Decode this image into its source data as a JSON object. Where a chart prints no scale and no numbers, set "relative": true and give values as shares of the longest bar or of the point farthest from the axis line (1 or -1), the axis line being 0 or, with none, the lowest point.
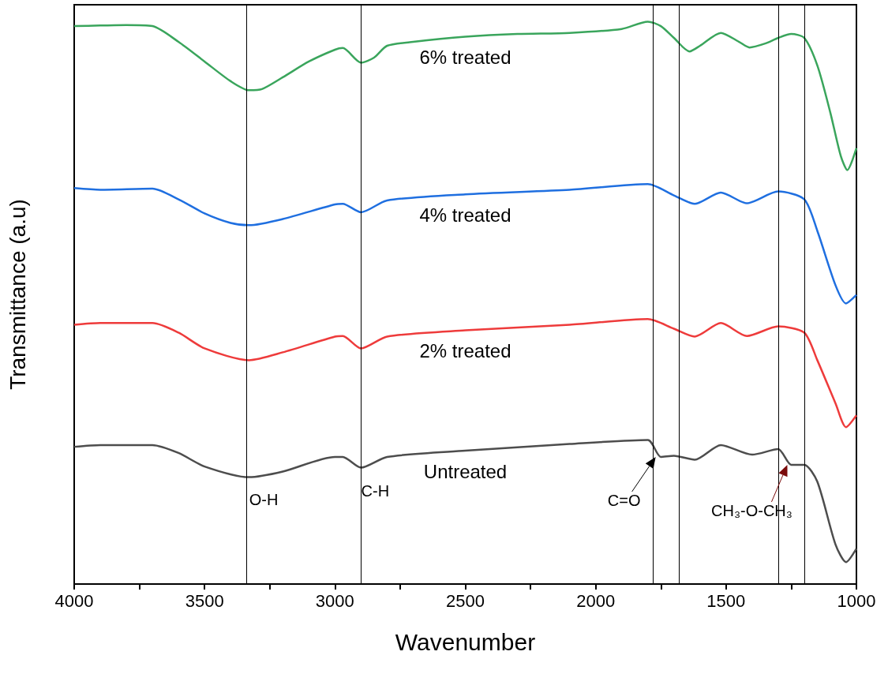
{
  "chart_data": {
    "type": "line",
    "relative": true,
    "xlabel": "Wavenumber",
    "ylabel": "Transmittance (a.u)",
    "xlim": [
      4000,
      1000
    ],
    "xticks": [
      4000,
      {
        "value": 3750,
        "label": null
      },
      3500,
      {
        "value": 3250,
        "label": null
      },
      3000,
      {
        "value": 2750,
        "label": null
      },
      2500,
      {
        "value": 2250,
        "label": null
      },
      2000,
      {
        "value": 1750,
        "label": null
      },
      1500,
      {
        "value": 1250,
        "label": null
      },
      1000
    ],
    "grid": false,
    "legend": false,
    "marker": "none",
    "line_style": "solid",
    "series": [
      {
        "name": "6% treated",
        "color": "#3aa55c",
        "x": [
          4000,
          3900,
          3800,
          3700,
          3600,
          3500,
          3400,
          3330,
          3280,
          3200,
          3100,
          3000,
          2970,
          2900,
          2850,
          2800,
          2700,
          2500,
          2300,
          2100,
          1900,
          1800,
          1750,
          1700,
          1640,
          1600,
          1520,
          1450,
          1410,
          1350,
          1300,
          1250,
          1200,
          1150,
          1100,
          1060,
          1035,
          1000
        ],
        "values": [
          0.992,
          0.993,
          0.994,
          0.992,
          0.964,
          0.929,
          0.894,
          0.878,
          0.88,
          0.901,
          0.929,
          0.95,
          0.953,
          0.927,
          0.936,
          0.957,
          0.964,
          0.973,
          0.978,
          0.98,
          0.987,
          1,
          0.992,
          0.971,
          0.947,
          0.957,
          0.98,
          0.964,
          0.954,
          0.961,
          0.971,
          0.978,
          0.971,
          0.922,
          0.838,
          0.761,
          0.736,
          0.775
        ]
      },
      {
        "name": "4% treated",
        "color": "#1f6fe0",
        "x": [
          4000,
          3900,
          3700,
          3600,
          3500,
          3400,
          3330,
          3200,
          3000,
          2970,
          2900,
          2800,
          2500,
          2100,
          1800,
          1700,
          1620,
          1520,
          1420,
          1300,
          1200,
          1150,
          1080,
          1040,
          1000
        ],
        "values": [
          0.704,
          0.701,
          0.703,
          0.684,
          0.659,
          0.642,
          0.638,
          0.649,
          0.675,
          0.676,
          0.661,
          0.682,
          0.693,
          0.701,
          0.711,
          0.691,
          0.676,
          0.696,
          0.677,
          0.698,
          0.684,
          0.628,
          0.531,
          0.499,
          0.514
        ]
      },
      {
        "name": "2% treated",
        "color": "#ee3b3b",
        "x": [
          4000,
          3900,
          3700,
          3600,
          3500,
          3330,
          3200,
          3000,
          2970,
          2900,
          2800,
          2500,
          2100,
          1800,
          1700,
          1620,
          1520,
          1420,
          1300,
          1200,
          1150,
          1080,
          1040,
          1000
        ],
        "values": [
          0.461,
          0.464,
          0.464,
          0.447,
          0.419,
          0.398,
          0.412,
          0.44,
          0.441,
          0.419,
          0.44,
          0.451,
          0.461,
          0.471,
          0.454,
          0.44,
          0.464,
          0.441,
          0.458,
          0.447,
          0.398,
          0.321,
          0.279,
          0.3
        ]
      },
      {
        "name": "Untreated",
        "color": "#4d4d4d",
        "x": [
          4000,
          3900,
          3700,
          3600,
          3500,
          3330,
          3200,
          3000,
          2970,
          2900,
          2800,
          2500,
          2100,
          1800,
          1750,
          1700,
          1620,
          1520,
          1400,
          1300,
          1250,
          1200,
          1150,
          1080,
          1040,
          1000
        ],
        "values": [
          0.244,
          0.247,
          0.247,
          0.233,
          0.209,
          0.19,
          0.2,
          0.226,
          0.226,
          0.207,
          0.226,
          0.237,
          0.249,
          0.256,
          0.226,
          0.228,
          0.221,
          0.247,
          0.23,
          0.24,
          0.212,
          0.212,
          0.182,
          0.07,
          0.039,
          0.063
        ]
      }
    ],
    "ref_lines": [
      {
        "axis": "x",
        "value": 3340,
        "color": "#000000"
      },
      {
        "axis": "x",
        "value": 2900,
        "color": "#000000"
      },
      {
        "axis": "x",
        "value": 1780,
        "color": "#000000"
      },
      {
        "axis": "x",
        "value": 1680,
        "color": "#000000"
      },
      {
        "axis": "x",
        "value": 1300,
        "color": "#000000"
      },
      {
        "axis": "x",
        "value": 1200,
        "color": "#000000"
      }
    ],
    "annotations": [
      {
        "text": "O-H",
        "x": 3340,
        "y": 0.19
      },
      {
        "text": "C-H",
        "x": 2900,
        "y": 0.207
      },
      {
        "text": "C=O",
        "x": 1770,
        "y": 0.226
      },
      {
        "text": "CH₃-O-CH₃",
        "x": 1265,
        "y": 0.212
      }
    ]
  }
}
